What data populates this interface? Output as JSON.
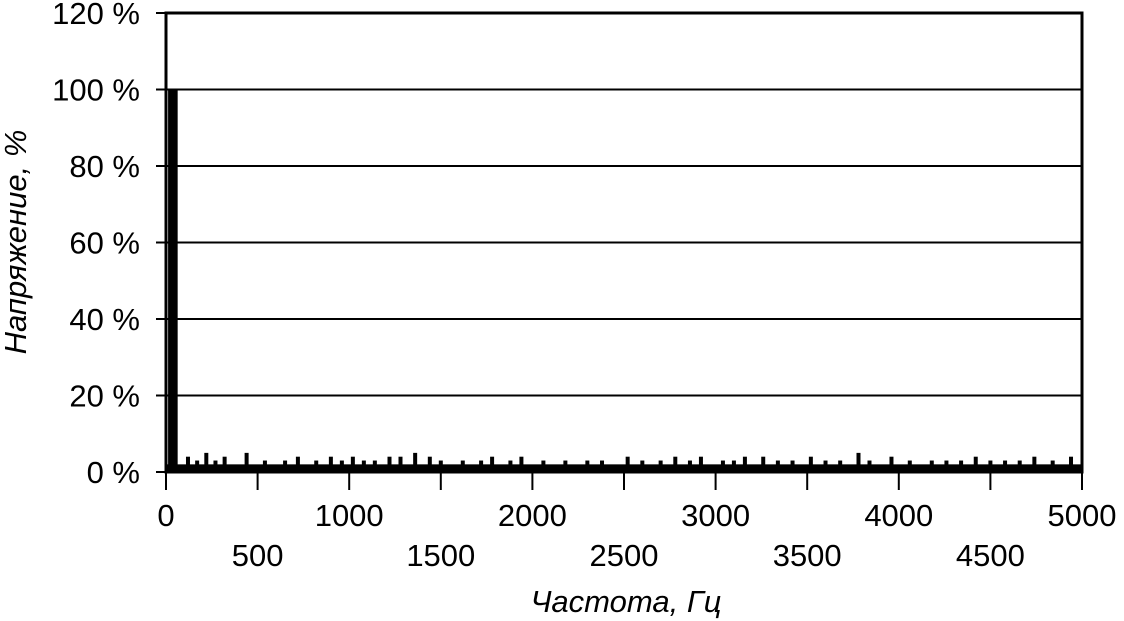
{
  "chart_data": {
    "type": "bar",
    "xlabel": "Частота, Гц",
    "ylabel": "Напряжение, %",
    "xlim": [
      0,
      5000
    ],
    "ylim": [
      0,
      120
    ],
    "y_ticks": [
      0,
      20,
      40,
      60,
      80,
      100,
      120
    ],
    "y_tick_labels": [
      "0 %",
      "20 %",
      "40 %",
      "60 %",
      "80 %",
      "100 %",
      "120 %"
    ],
    "x_ticks": [
      0,
      500,
      1000,
      1500,
      2000,
      2500,
      3000,
      3500,
      4000,
      4500,
      5000
    ],
    "x_tick_labels": [
      "0",
      "500",
      "1000",
      "1500",
      "2000",
      "2500",
      "3000",
      "3500",
      "4000",
      "4500",
      "5000"
    ],
    "grid": "horizontal",
    "legend": "none",
    "series": [
      {
        "x": [
          25,
          50,
          120,
          170,
          220,
          270,
          320,
          440,
          540,
          650,
          720,
          820,
          900,
          960,
          1020,
          1080,
          1140,
          1220,
          1280,
          1360,
          1440,
          1500,
          1620,
          1720,
          1780,
          1880,
          1940,
          2060,
          2180,
          2300,
          2380,
          2520,
          2600,
          2700,
          2780,
          2860,
          2920,
          3040,
          3100,
          3160,
          3260,
          3340,
          3420,
          3520,
          3600,
          3680,
          3780,
          3840,
          3960,
          4060,
          4180,
          4260,
          4340,
          4420,
          4500,
          4580,
          4660,
          4740,
          4840,
          4940
        ],
        "values": [
          100,
          100,
          4,
          3,
          5,
          3,
          4,
          5,
          3,
          3,
          4,
          3,
          4,
          3,
          4,
          3,
          3,
          4,
          4,
          5,
          4,
          3,
          3,
          3,
          4,
          3,
          4,
          3,
          3,
          3,
          3,
          4,
          3,
          3,
          4,
          3,
          4,
          3,
          3,
          4,
          4,
          3,
          3,
          4,
          3,
          3,
          5,
          3,
          4,
          3,
          3,
          3,
          3,
          4,
          3,
          3,
          3,
          4,
          3,
          4
        ]
      }
    ]
  }
}
